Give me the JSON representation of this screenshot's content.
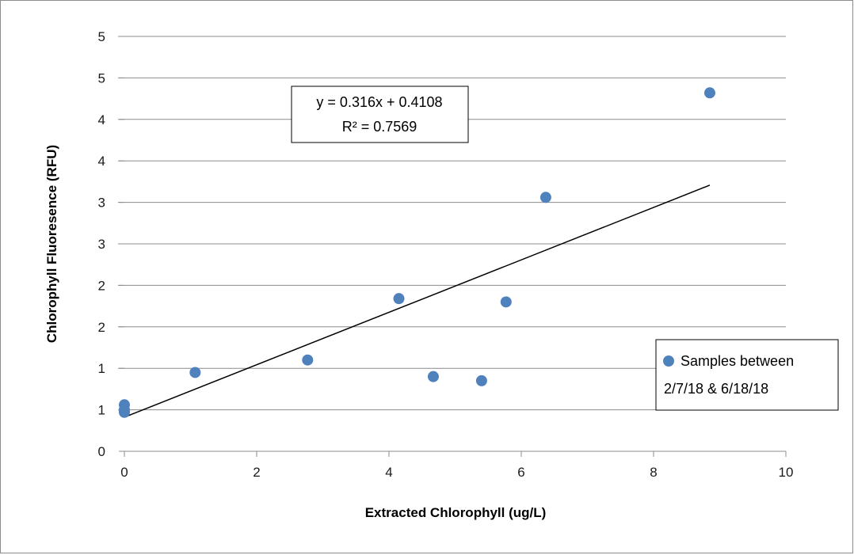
{
  "chart_data": {
    "type": "scatter",
    "title": "",
    "xlabel": "Extracted Chlorophyll (ug/L)",
    "ylabel": "Chlorophyll Fluoresence (RFU)",
    "xlim": [
      0,
      10
    ],
    "ylim": [
      0,
      5
    ],
    "x_ticks": [
      0,
      2,
      4,
      6,
      8,
      10
    ],
    "x_tick_labels": [
      "0",
      "2",
      "4",
      "6",
      "8",
      "10"
    ],
    "y_ticks": [
      0,
      0.5,
      1,
      1.5,
      2,
      2.5,
      3,
      3.5,
      4,
      4.5,
      5
    ],
    "y_tick_labels": [
      "0",
      "1",
      "1",
      "2",
      "2",
      "3",
      "3",
      "4",
      "4",
      "5",
      "5"
    ],
    "grid": true,
    "legend_position": "right",
    "point_color": "#4f81bd",
    "series": [
      {
        "name": "Samples between 2/7/18 & 6/18/18",
        "legend_lines": [
          "Samples between",
          "2/7/18 & 6/18/18"
        ],
        "x": [
          0.0,
          0.0,
          0.0,
          1.07,
          2.77,
          4.15,
          4.67,
          5.4,
          5.77,
          6.37,
          8.85
        ],
        "y": [
          0.56,
          0.5,
          0.47,
          0.95,
          1.1,
          1.84,
          0.9,
          0.85,
          1.8,
          3.06,
          4.32
        ]
      }
    ],
    "trendline": {
      "slope": 0.316,
      "intercept": 0.4108,
      "x_range": [
        0,
        8.85
      ],
      "equation": "y = 0.316x + 0.4108",
      "r_squared": "R² = 0.7569"
    }
  }
}
